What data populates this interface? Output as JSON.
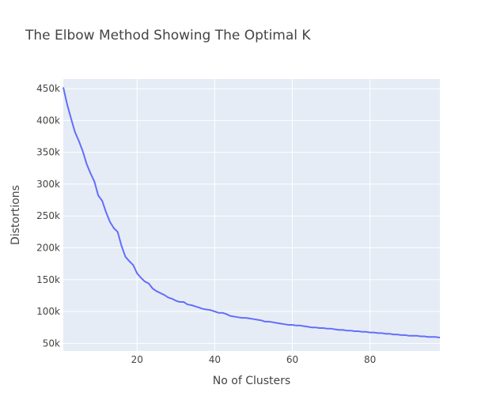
{
  "chart_data": {
    "type": "line",
    "title": "The Elbow Method Showing The Optimal K",
    "xlabel": "No of Clusters",
    "ylabel": "Distortions",
    "xlim": [
      1,
      98
    ],
    "ylim": [
      38000,
      465000
    ],
    "x_ticks": [
      20,
      40,
      60,
      80
    ],
    "x_tick_labels": [
      "20",
      "40",
      "60",
      "80"
    ],
    "y_ticks": [
      50000,
      100000,
      150000,
      200000,
      250000,
      300000,
      350000,
      400000,
      450000
    ],
    "y_tick_labels": [
      "50k",
      "100k",
      "150k",
      "200k",
      "250k",
      "300k",
      "350k",
      "400k",
      "450k"
    ],
    "grid": true,
    "plot_bgcolor": "#e5ecf6",
    "line_color": "#636efa",
    "series": [
      {
        "x": [
          1,
          2,
          3,
          4,
          5,
          6,
          7,
          8,
          9,
          10,
          11,
          12,
          13,
          14,
          15,
          16,
          17,
          18,
          19,
          20,
          21,
          22,
          23,
          24,
          25,
          26,
          27,
          28,
          29,
          30,
          31,
          32,
          33,
          34,
          35,
          36,
          37,
          38,
          39,
          40,
          41,
          42,
          43,
          44,
          45,
          46,
          47,
          48,
          49,
          50,
          51,
          52,
          53,
          54,
          55,
          56,
          57,
          58,
          59,
          60,
          61,
          62,
          63,
          64,
          65,
          66,
          67,
          68,
          69,
          70,
          71,
          72,
          73,
          74,
          75,
          76,
          77,
          78,
          79,
          80,
          81,
          82,
          83,
          84,
          85,
          86,
          87,
          88,
          89,
          90,
          91,
          92,
          93,
          94,
          95,
          96,
          97,
          98
        ],
        "y": [
          452000,
          425000,
          403000,
          382000,
          368000,
          352000,
          332000,
          317000,
          304000,
          282000,
          274000,
          256000,
          241000,
          231000,
          225000,
          203000,
          186000,
          179000,
          173000,
          160000,
          153000,
          147000,
          144000,
          136000,
          132000,
          129000,
          126000,
          122000,
          120000,
          117000,
          115000,
          115000,
          111000,
          110000,
          108000,
          106000,
          104000,
          103000,
          102000,
          100000,
          98000,
          98000,
          96000,
          93000,
          92000,
          91000,
          90000,
          90000,
          89000,
          88000,
          87000,
          86000,
          84000,
          84000,
          83000,
          82000,
          81000,
          80000,
          79000,
          79000,
          78000,
          78000,
          77000,
          76000,
          75000,
          75000,
          74000,
          74000,
          73000,
          73000,
          72000,
          71000,
          71000,
          70000,
          70000,
          69000,
          69000,
          68000,
          68000,
          67000,
          67000,
          66000,
          66000,
          65000,
          65000,
          64000,
          64000,
          63000,
          63000,
          62000,
          62000,
          62000,
          61000,
          61000,
          60000,
          60000,
          60000,
          59000
        ]
      }
    ]
  }
}
